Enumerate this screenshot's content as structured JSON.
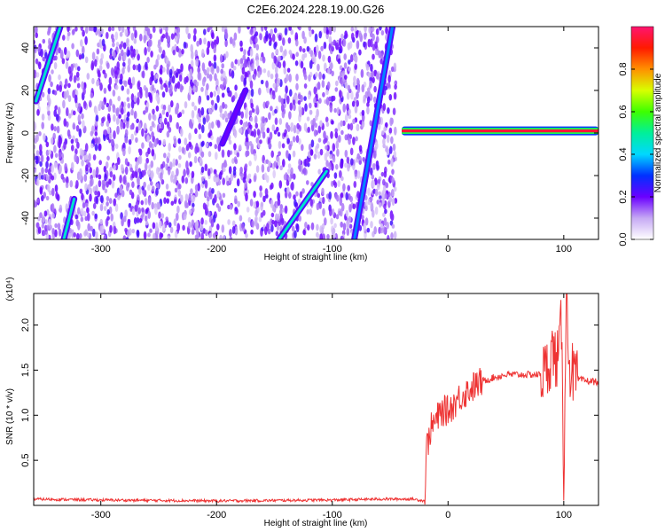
{
  "title": "C2E6.2024.228.19.00.G26",
  "chart_data": [
    {
      "type": "heatmap",
      "xlabel": "Height of straight line (km)",
      "ylabel": "Frequency (Hz)",
      "xlim": [
        -358,
        130
      ],
      "ylim": [
        -50,
        50
      ],
      "xticks": [
        -300,
        -200,
        -100,
        0,
        100
      ],
      "yticks": [
        -40,
        -20,
        0,
        20,
        40
      ],
      "colorbar": {
        "label": "Normalized spectral amplitude",
        "range": [
          0.0,
          1.0
        ],
        "ticks": [
          0.0,
          0.2,
          0.4,
          0.6,
          0.8
        ]
      },
      "features": [
        {
          "kind": "noise",
          "x_range": [
            -358,
            -45
          ],
          "freq_range": [
            -50,
            50
          ],
          "amplitude": 0.2
        },
        {
          "kind": "streak",
          "points": [
            [
              -356,
              15
            ],
            [
              -335,
              50
            ]
          ],
          "amplitude": 0.45
        },
        {
          "kind": "streak",
          "points": [
            [
              -332,
              -50
            ],
            [
              -323,
              -31
            ]
          ],
          "amplitude": 0.45
        },
        {
          "kind": "streak",
          "points": [
            [
              -146,
              -50
            ],
            [
              -105,
              -18
            ]
          ],
          "amplitude": 0.45
        },
        {
          "kind": "streak",
          "points": [
            [
              -81,
              -50
            ],
            [
              -48,
              50
            ]
          ],
          "amplitude": 0.35
        },
        {
          "kind": "streak",
          "points": [
            [
              -195,
              -5
            ],
            [
              -175,
              20
            ]
          ],
          "amplitude": 0.2
        },
        {
          "kind": "band",
          "x_range": [
            -40,
            130
          ],
          "freq": 1,
          "amplitude": 0.95
        }
      ]
    },
    {
      "type": "line",
      "xlabel": "Height of straight line (km)",
      "ylabel": "SNR (10 * v/v)",
      "y_multiplier": "(x10⁴)",
      "xlim": [
        -358,
        130
      ],
      "ylim": [
        0,
        2.35
      ],
      "xticks": [
        -300,
        -200,
        -100,
        0,
        100
      ],
      "yticks": [
        0.5,
        1.0,
        1.5,
        2.0
      ],
      "x": [
        -358,
        -300,
        -200,
        -100,
        -60,
        -30,
        -20,
        -19,
        -15,
        -10,
        -5,
        0,
        10,
        20,
        30,
        40,
        50,
        60,
        70,
        80,
        85,
        90,
        95,
        98,
        100,
        102,
        105,
        110,
        120,
        130
      ],
      "values": [
        0.07,
        0.06,
        0.05,
        0.06,
        0.07,
        0.07,
        0.05,
        0.6,
        0.85,
        0.95,
        1.05,
        1.05,
        1.2,
        1.3,
        1.38,
        1.42,
        1.45,
        1.45,
        1.45,
        1.45,
        1.5,
        1.7,
        1.6,
        2.0,
        0.25,
        2.35,
        1.55,
        1.4,
        1.38,
        1.37
      ]
    }
  ]
}
